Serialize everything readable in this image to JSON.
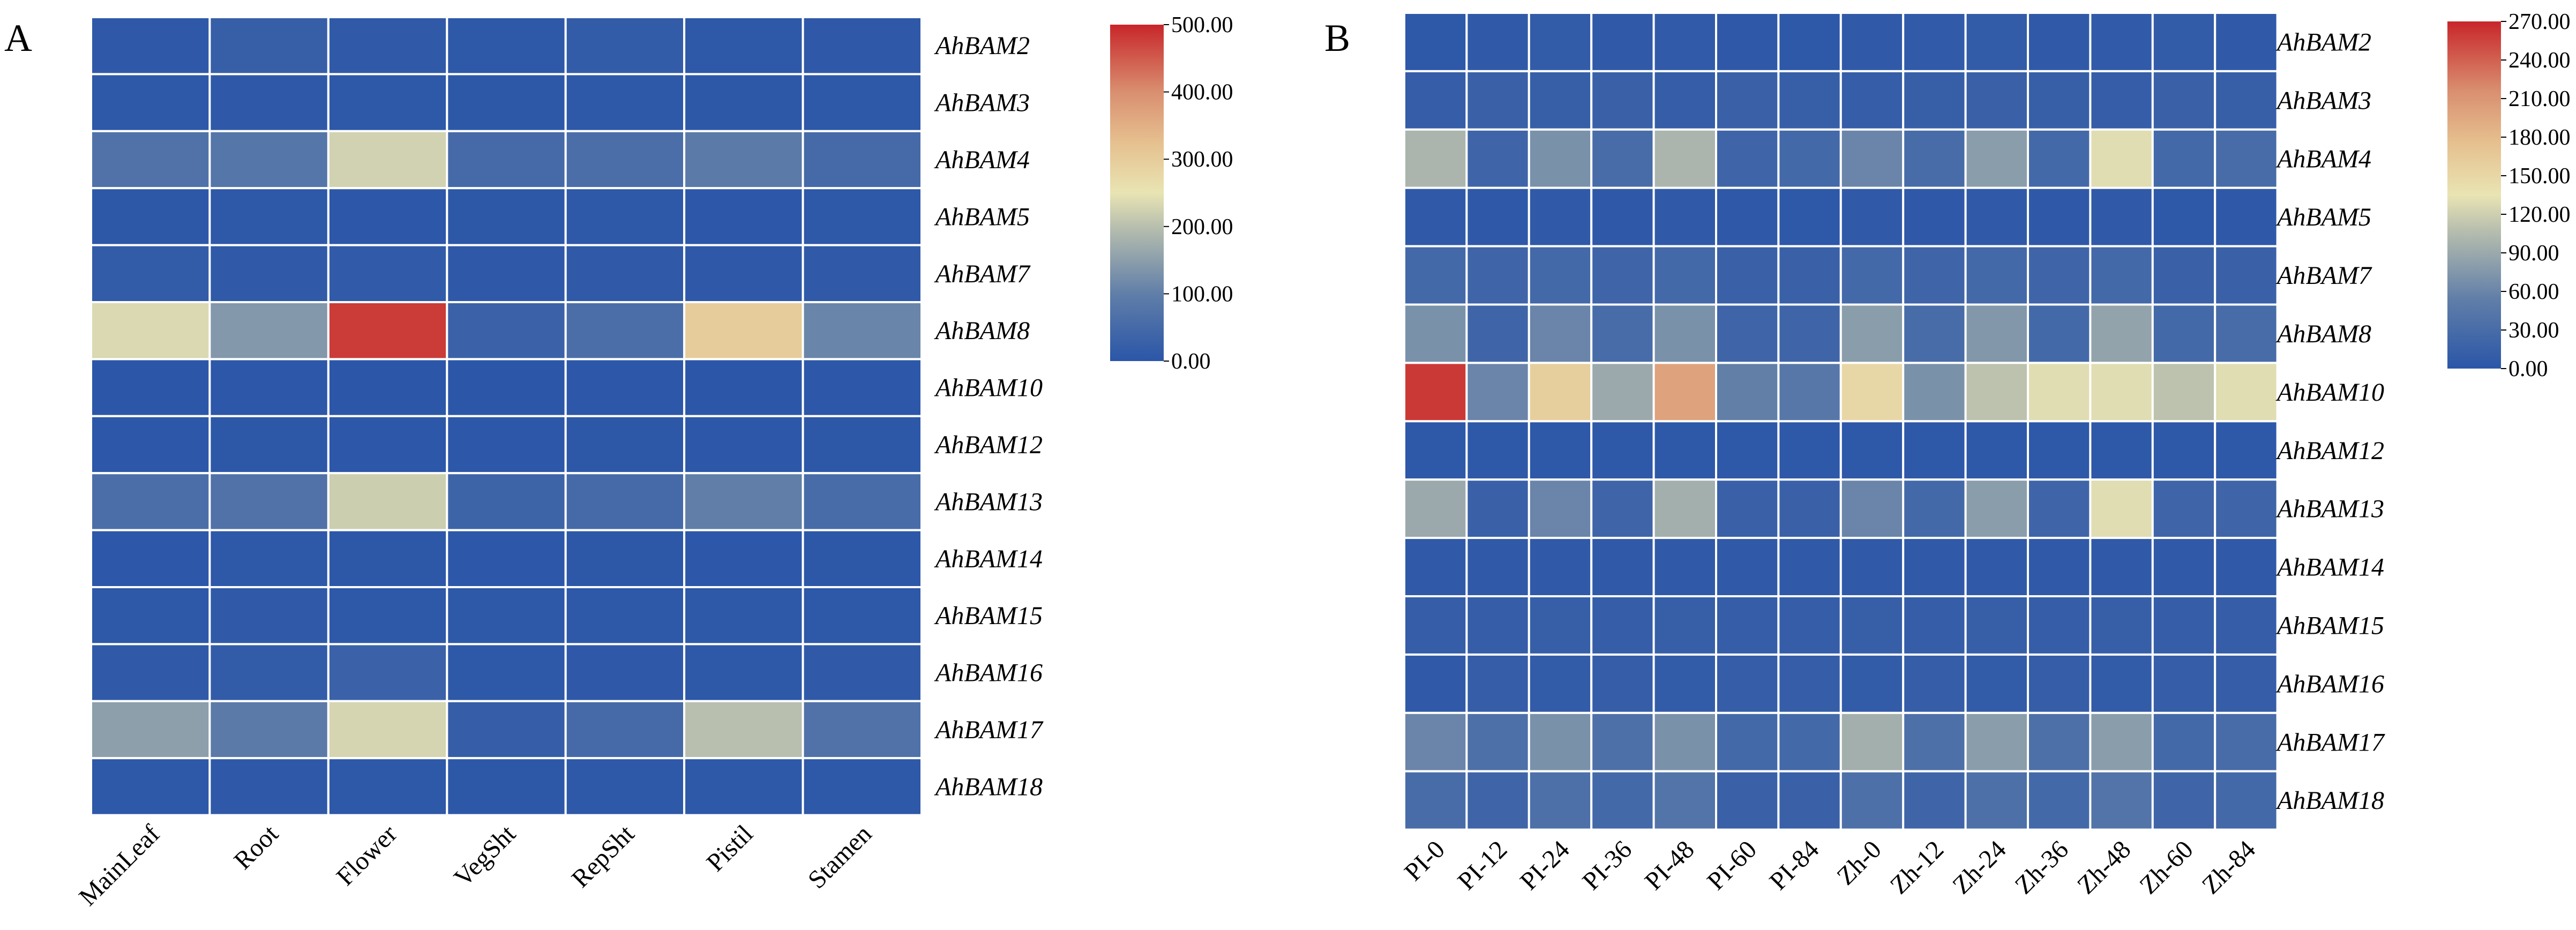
{
  "chart_data": [
    {
      "type": "heatmap",
      "panel": "A",
      "columns": [
        "MainLeaf",
        "Root",
        "Flower",
        "VegSht",
        "RepSht",
        "Pistil",
        "Stamen"
      ],
      "rows": [
        "AhBAM2",
        "AhBAM3",
        "AhBAM4",
        "AhBAM5",
        "AhBAM7",
        "AhBAM8",
        "AhBAM10",
        "AhBAM12",
        "AhBAM13",
        "AhBAM14",
        "AhBAM15",
        "AhBAM16",
        "AhBAM17",
        "AhBAM18"
      ],
      "values": [
        [
          8,
          22,
          10,
          6,
          15,
          6,
          8
        ],
        [
          6,
          8,
          5,
          4,
          6,
          4,
          6
        ],
        [
          70,
          80,
          225,
          50,
          60,
          90,
          50
        ],
        [
          4,
          5,
          3,
          4,
          6,
          3,
          5
        ],
        [
          15,
          10,
          12,
          8,
          10,
          8,
          10
        ],
        [
          235,
          140,
          480,
          30,
          60,
          300,
          110
        ],
        [
          2,
          3,
          2,
          2,
          3,
          2,
          3
        ],
        [
          3,
          4,
          3,
          3,
          4,
          3,
          4
        ],
        [
          60,
          70,
          220,
          35,
          50,
          100,
          55
        ],
        [
          3,
          6,
          4,
          3,
          4,
          3,
          4
        ],
        [
          5,
          10,
          6,
          5,
          6,
          5,
          6
        ],
        [
          10,
          15,
          30,
          5,
          8,
          5,
          10
        ],
        [
          150,
          90,
          230,
          20,
          50,
          200,
          70
        ],
        [
          5,
          8,
          6,
          4,
          6,
          5,
          6
        ]
      ],
      "colorbar": {
        "min": 0,
        "max": 500,
        "ticks": [
          "0.00",
          "100.00",
          "200.00",
          "300.00",
          "400.00",
          "500.00"
        ],
        "tick_values": [
          0,
          100,
          200,
          300,
          400,
          500
        ]
      },
      "colors": {
        "low": "#2b56a8",
        "mid": "#e9e4b3",
        "high": "#c8262a"
      }
    },
    {
      "type": "heatmap",
      "panel": "B",
      "columns": [
        "PI-0",
        "PI-12",
        "PI-24",
        "PI-36",
        "PI-48",
        "PI-60",
        "PI-84",
        "Zh-0",
        "Zh-12",
        "Zh-24",
        "Zh-36",
        "Zh-48",
        "Zh-60",
        "Zh-84"
      ],
      "rows": [
        "AhBAM2",
        "AhBAM3",
        "AhBAM4",
        "AhBAM5",
        "AhBAM7",
        "AhBAM8",
        "AhBAM10",
        "AhBAM12",
        "AhBAM13",
        "AhBAM14",
        "AhBAM15",
        "AhBAM16",
        "AhBAM17",
        "AhBAM18"
      ],
      "values": [
        [
          3,
          5,
          8,
          5,
          6,
          4,
          3,
          5,
          6,
          8,
          5,
          6,
          8,
          5
        ],
        [
          10,
          15,
          12,
          15,
          10,
          15,
          12,
          10,
          12,
          15,
          12,
          10,
          15,
          12
        ],
        [
          100,
          20,
          70,
          30,
          100,
          20,
          25,
          60,
          30,
          80,
          25,
          130,
          25,
          30
        ],
        [
          5,
          4,
          5,
          4,
          5,
          4,
          3,
          5,
          4,
          5,
          4,
          5,
          3,
          4
        ],
        [
          25,
          20,
          25,
          20,
          25,
          15,
          15,
          25,
          20,
          25,
          20,
          25,
          15,
          15
        ],
        [
          70,
          20,
          60,
          30,
          70,
          20,
          20,
          80,
          30,
          75,
          25,
          85,
          25,
          30
        ],
        [
          260,
          60,
          160,
          90,
          200,
          55,
          45,
          150,
          70,
          110,
          130,
          130,
          110,
          130
        ],
        [
          3,
          3,
          3,
          3,
          3,
          3,
          3,
          3,
          3,
          3,
          3,
          3,
          3,
          3
        ],
        [
          90,
          15,
          60,
          20,
          95,
          15,
          15,
          60,
          25,
          80,
          20,
          130,
          20,
          20
        ],
        [
          5,
          5,
          5,
          5,
          5,
          5,
          5,
          5,
          5,
          5,
          5,
          5,
          5,
          5
        ],
        [
          10,
          10,
          12,
          10,
          12,
          10,
          10,
          12,
          10,
          12,
          10,
          12,
          10,
          10
        ],
        [
          5,
          10,
          8,
          10,
          8,
          10,
          10,
          8,
          10,
          8,
          10,
          8,
          10,
          10
        ],
        [
          60,
          35,
          70,
          35,
          70,
          25,
          25,
          95,
          35,
          80,
          35,
          80,
          25,
          30
        ],
        [
          30,
          20,
          35,
          25,
          40,
          15,
          15,
          35,
          20,
          35,
          25,
          40,
          20,
          25
        ]
      ],
      "colorbar": {
        "min": 0,
        "max": 270,
        "ticks": [
          "0.00",
          "30.00",
          "60.00",
          "90.00",
          "120.00",
          "150.00",
          "180.00",
          "210.00",
          "240.00",
          "270.00"
        ],
        "tick_values": [
          0,
          30,
          60,
          90,
          120,
          150,
          180,
          210,
          240,
          270
        ]
      },
      "colors": {
        "low": "#2b56a8",
        "mid": "#e9e4b3",
        "high": "#c8262a"
      }
    }
  ]
}
